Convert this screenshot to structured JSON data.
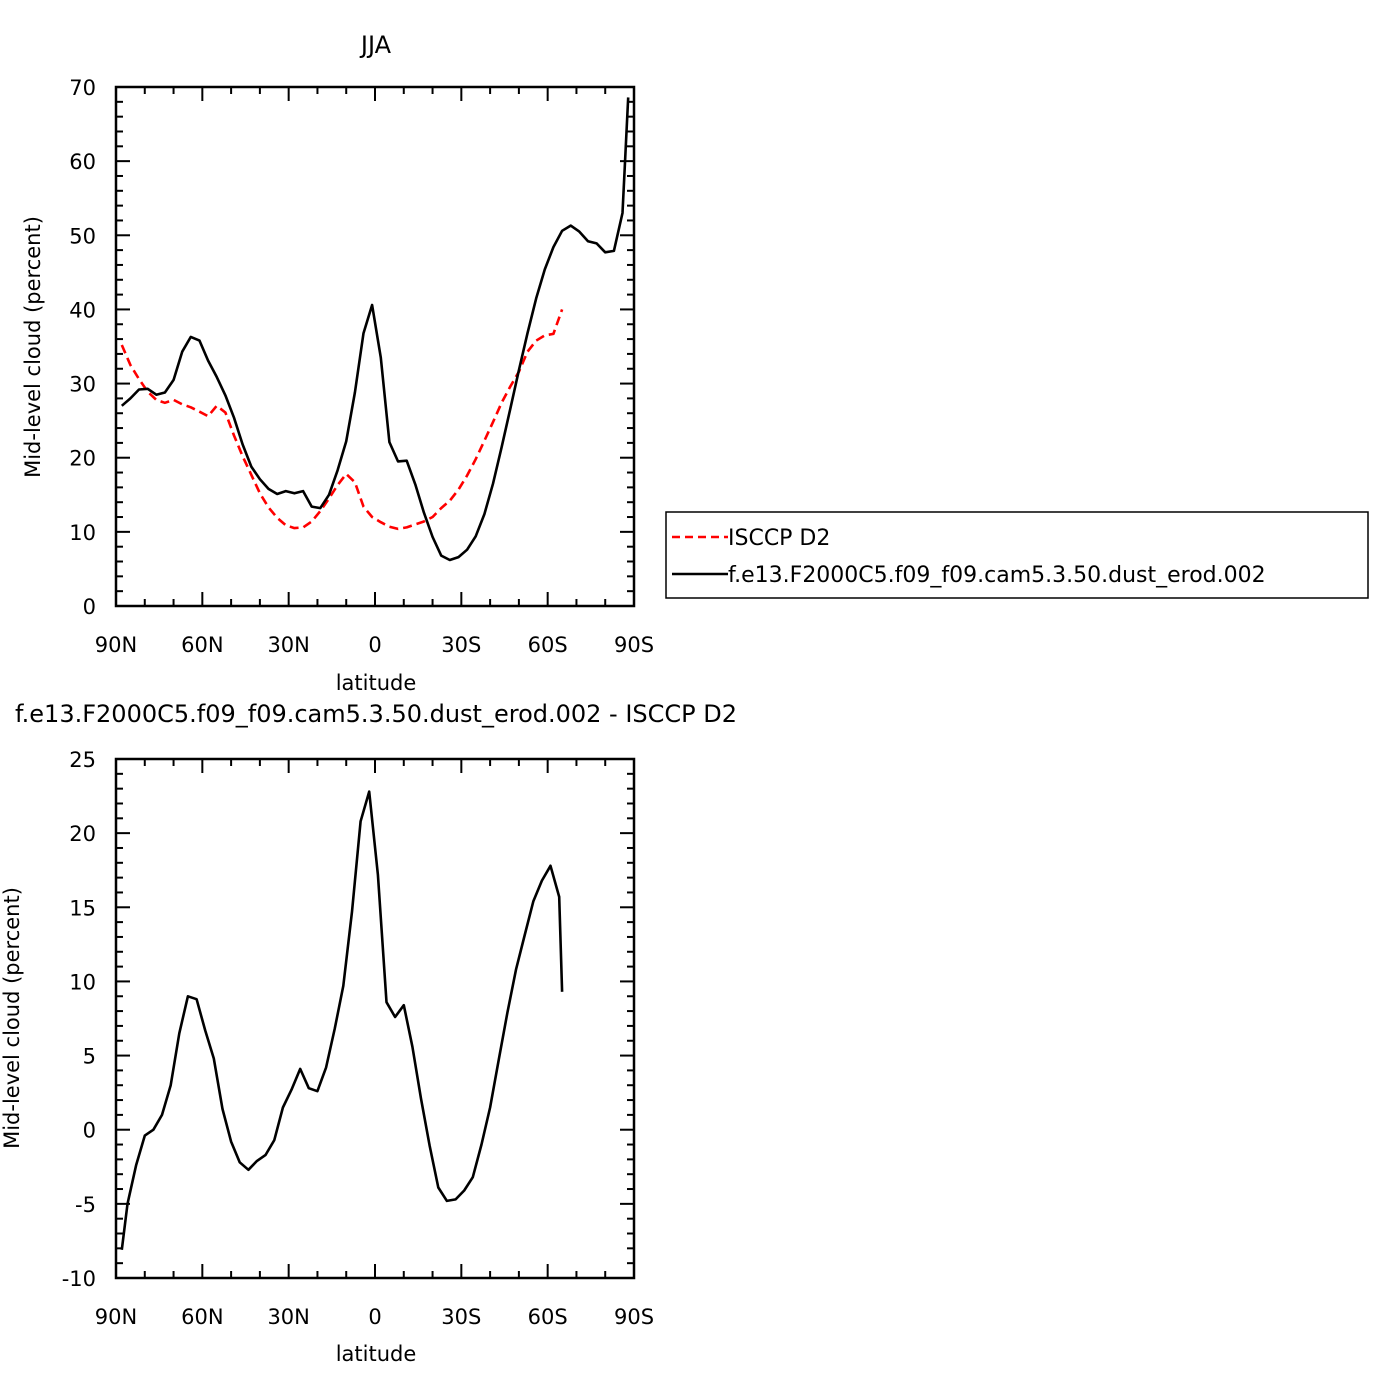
{
  "chart_data": [
    {
      "type": "line",
      "title": "JJA",
      "xlabel": "latitude",
      "ylabel": "Mid-level cloud (percent)",
      "xlim": [
        90,
        -90
      ],
      "ylim": [
        0,
        70
      ],
      "x_ticks": [
        90,
        60,
        30,
        0,
        -30,
        -60,
        -90
      ],
      "x_tick_labels": [
        "90N",
        "60N",
        "30N",
        "0",
        "30S",
        "60S",
        "90S"
      ],
      "y_ticks": [
        0,
        10,
        20,
        30,
        40,
        50,
        60,
        70
      ],
      "y_tick_labels": [
        "0",
        "10",
        "20",
        "30",
        "40",
        "50",
        "60",
        "70"
      ],
      "legend_position": "right",
      "series": [
        {
          "name": "ISCCP D2",
          "color": "#ff0000",
          "dash": "dashed",
          "x": [
            88,
            85,
            82,
            79,
            76,
            73,
            70,
            67,
            64,
            61,
            58,
            55,
            52,
            49,
            46,
            43,
            40,
            37,
            34,
            31,
            28,
            25,
            22,
            19,
            16,
            13,
            10,
            7,
            4,
            1,
            -2,
            -5,
            -8,
            -11,
            -14,
            -17,
            -20,
            -23,
            -26,
            -29,
            -32,
            -35,
            -38,
            -41,
            -44,
            -47,
            -50,
            -53,
            -56,
            -59,
            -62,
            -65
          ],
          "y": [
            35.2,
            32.5,
            30.6,
            28.9,
            27.8,
            27.4,
            27.8,
            27.2,
            26.8,
            26.2,
            25.6,
            27,
            26.1,
            23,
            20.2,
            17.7,
            15.2,
            13.3,
            11.9,
            10.9,
            10.5,
            10.6,
            11.4,
            12.8,
            14.5,
            16.3,
            17.8,
            16.7,
            13.4,
            12,
            11.3,
            10.7,
            10.4,
            10.6,
            11,
            11.4,
            12,
            13.2,
            14.2,
            15.7,
            17.6,
            19.8,
            22.3,
            24.8,
            27.4,
            29.6,
            31.6,
            34.3,
            35.8,
            36.5,
            36.7,
            40
          ]
        },
        {
          "name": "f.e13.F2000C5.f09_f09.cam5.3.50.dust_erod.002",
          "color": "#000000",
          "dash": "solid",
          "x": [
            88,
            85,
            82,
            79,
            76,
            73,
            70,
            67,
            64,
            61,
            58,
            55,
            52,
            49,
            46,
            43,
            40,
            37,
            34,
            31,
            28,
            25,
            22,
            19,
            16,
            13,
            10,
            7,
            4,
            1,
            -2,
            -5,
            -8,
            -11,
            -14,
            -17,
            -20,
            -23,
            -26,
            -29,
            -32,
            -35,
            -38,
            -41,
            -44,
            -47,
            -50,
            -53,
            -56,
            -59,
            -62,
            -65,
            -68,
            -71,
            -74,
            -77,
            -80,
            -83,
            -86,
            -88
          ],
          "y": [
            27,
            28,
            29.2,
            29.3,
            28.5,
            28.8,
            30.5,
            34.3,
            36.3,
            35.8,
            33.1,
            30.9,
            28.4,
            25.4,
            21.8,
            18.8,
            17.1,
            15.8,
            15.1,
            15.5,
            15.2,
            15.5,
            13.4,
            13.2,
            15,
            18.3,
            22.2,
            28.8,
            36.8,
            40.6,
            33.5,
            22.1,
            19.5,
            19.6,
            16.4,
            12.6,
            9.3,
            6.8,
            6.2,
            6.6,
            7.6,
            9.4,
            12.4,
            16.5,
            21.4,
            26.6,
            31.8,
            36.8,
            41.5,
            45.4,
            48.4,
            50.6,
            51.3,
            50.5,
            49.2,
            48.9,
            47.7,
            47.9,
            53,
            68.6
          ]
        }
      ]
    },
    {
      "type": "line",
      "title": "f.e13.F2000C5.f09_f09.cam5.3.50.dust_erod.002 - ISCCP D2",
      "xlabel": "latitude",
      "ylabel": "Mid-level cloud (percent)",
      "xlim": [
        90,
        -90
      ],
      "ylim": [
        -10,
        25
      ],
      "x_ticks": [
        90,
        60,
        30,
        0,
        -30,
        -60,
        -90
      ],
      "x_tick_labels": [
        "90N",
        "60N",
        "30N",
        "0",
        "30S",
        "60S",
        "90S"
      ],
      "y_ticks": [
        -10,
        -5,
        0,
        5,
        10,
        15,
        20,
        25
      ],
      "y_tick_labels": [
        "-10",
        "-5",
        "0",
        "5",
        "10",
        "15",
        "20",
        "25"
      ],
      "series": [
        {
          "color": "#000000",
          "dash": "solid",
          "x": [
            88,
            86,
            83,
            80,
            77,
            74,
            71,
            68,
            65,
            62,
            59,
            56,
            53,
            50,
            47,
            44,
            41,
            38,
            35,
            32,
            29,
            26,
            23,
            20,
            17,
            14,
            11,
            8,
            5,
            2,
            -1,
            -4,
            -7,
            -10,
            -13,
            -16,
            -19,
            -22,
            -25,
            -28,
            -31,
            -34,
            -37,
            -40,
            -43,
            -46,
            -49,
            -52,
            -55,
            -58,
            -61,
            -64,
            -65
          ],
          "y": [
            -8.1,
            -5,
            -2.4,
            -0.4,
            0,
            1,
            3,
            6.5,
            9,
            8.8,
            6.7,
            4.8,
            1.4,
            -0.8,
            -2.2,
            -2.7,
            -2.1,
            -1.7,
            -0.7,
            1.5,
            2.7,
            4.1,
            2.8,
            2.6,
            4.2,
            6.8,
            9.7,
            14.7,
            20.8,
            22.8,
            17.2,
            8.6,
            7.6,
            8.4,
            5.6,
            2.1,
            -1.1,
            -3.9,
            -4.8,
            -4.7,
            -4.1,
            -3.2,
            -1,
            1.5,
            4.7,
            7.9,
            10.8,
            13.1,
            15.4,
            16.8,
            17.8,
            15.7,
            9.3
          ]
        }
      ]
    }
  ]
}
